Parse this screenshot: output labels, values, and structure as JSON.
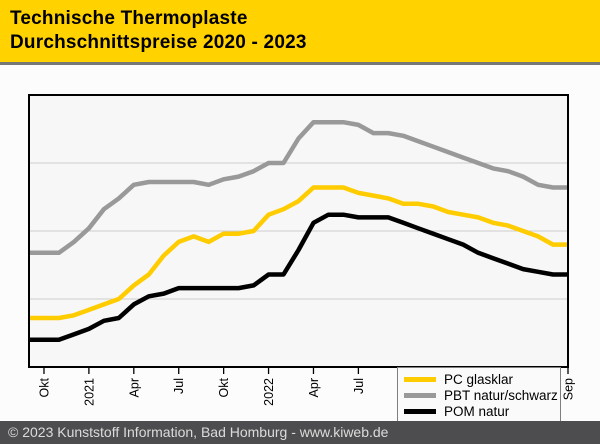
{
  "header": {
    "title_line1": "Technische Thermoplaste",
    "title_line2": "Durchschnittspreise 2020 - 2023",
    "background": "#FFD200",
    "text_color": "#000000"
  },
  "footer": {
    "copyright": "© 2023 Kunststoff Information, Bad Homburg - www.kiweb.de",
    "background": "#4D4D4F",
    "text_color": "#DBDBDB"
  },
  "chart_data": {
    "type": "line",
    "title": "Technische Thermoplaste — Durchschnittspreise 2020 - 2023",
    "xlabel": "",
    "ylabel": "",
    "x_start": "Sep 2020",
    "x_end": "Sep 2023",
    "x_tick_labels": [
      {
        "label": "Okt",
        "month_index": 1
      },
      {
        "label": "2021",
        "month_index": 4
      },
      {
        "label": "Apr",
        "month_index": 7
      },
      {
        "label": "Jul",
        "month_index": 10
      },
      {
        "label": "Okt",
        "month_index": 13
      },
      {
        "label": "2022",
        "month_index": 16
      },
      {
        "label": "Apr",
        "month_index": 19
      },
      {
        "label": "Jul",
        "month_index": 22
      },
      {
        "label": "Okt",
        "month_index": 25
      },
      {
        "label": "2023",
        "month_index": 28
      },
      {
        "label": "Apr",
        "month_index": 31
      },
      {
        "label": "Jul",
        "month_index": 34
      },
      {
        "label": "Sep",
        "month_index": 36
      }
    ],
    "ylim": [
      0,
      100
    ],
    "y_ticks_shown": false,
    "gridlines_y": [
      25,
      50,
      75
    ],
    "grid_color": "#CCCCCC",
    "plot_background": "#F7F7F7",
    "axis_color": "#000000",
    "legend_position": "lower right",
    "series": [
      {
        "name": "PC glasklar",
        "color": "#FFCC00",
        "values": [
          18,
          18,
          18,
          19,
          21,
          23,
          25,
          30,
          34,
          41,
          46,
          48,
          46,
          49,
          49,
          50,
          56,
          58,
          61,
          66,
          66,
          66,
          64,
          63,
          62,
          60,
          60,
          59,
          57,
          56,
          55,
          53,
          52,
          50,
          48,
          45,
          45
        ]
      },
      {
        "name": "PBT natur/schwarz",
        "color": "#999999",
        "values": [
          42,
          42,
          42,
          46,
          51,
          58,
          62,
          67,
          68,
          68,
          68,
          68,
          67,
          69,
          70,
          72,
          75,
          75,
          84,
          90,
          90,
          90,
          89,
          86,
          86,
          85,
          83,
          81,
          79,
          77,
          75,
          73,
          72,
          70,
          67,
          66,
          66
        ]
      },
      {
        "name": "POM natur",
        "color": "#000000",
        "values": [
          10,
          10,
          10,
          12,
          14,
          17,
          18,
          23,
          26,
          27,
          29,
          29,
          29,
          29,
          29,
          30,
          34,
          34,
          43,
          53,
          56,
          56,
          55,
          55,
          55,
          53,
          51,
          49,
          47,
          45,
          42,
          40,
          38,
          36,
          35,
          34,
          34
        ]
      }
    ]
  }
}
